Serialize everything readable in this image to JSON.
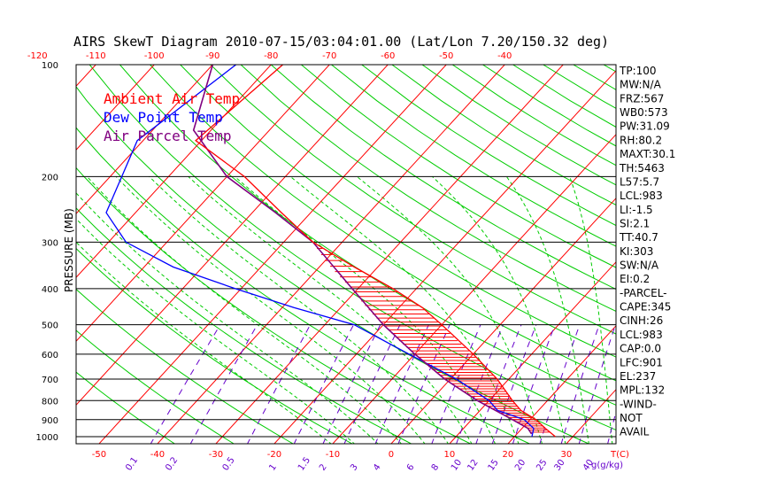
{
  "chart_data": {
    "type": "line",
    "title": "AIRS SkewT Diagram 2010-07-15/03:04:01.00 (Lat/Lon 7.20/150.32 deg)",
    "ylabel": "PRESSURE (MB)",
    "xlabel": "T(C)",
    "mixing_label": "g(g/kg)",
    "pressure_ticks": [
      100,
      200,
      300,
      400,
      500,
      600,
      700,
      800,
      900,
      1000
    ],
    "top_temp_ticks": [
      -120,
      -110,
      -100,
      -90,
      -80,
      -70,
      -60,
      -50,
      -40
    ],
    "bottom_temp_ticks": [
      -50,
      -40,
      -30,
      -20,
      -10,
      0,
      10,
      20,
      30
    ],
    "mixing_ratio_labels": [
      "0.1",
      "0.2",
      "0.5",
      "1",
      "1.5",
      "2",
      "3",
      "4",
      "6",
      "8",
      "10",
      "12",
      "15",
      "20",
      "25",
      "30",
      "40"
    ],
    "mixing_ratio_values": [
      0.1,
      0.2,
      0.5,
      1,
      1.5,
      2,
      3,
      4,
      6,
      8,
      10,
      12,
      15,
      20,
      25,
      30,
      40
    ],
    "legend": [
      {
        "label": "Ambient Air Temp",
        "color": "#ff0000"
      },
      {
        "label": "Dew Point Temp",
        "color": "#0000ff"
      },
      {
        "label": "Air Parcel Temp",
        "color": "#800080"
      }
    ],
    "series": [
      {
        "name": "Ambient Air Temp",
        "points": [
          [
            100,
            -78
          ],
          [
            160,
            -81
          ],
          [
            200,
            -67
          ],
          [
            250,
            -55
          ],
          [
            300,
            -45
          ],
          [
            350,
            -34
          ],
          [
            400,
            -24
          ],
          [
            450,
            -16
          ],
          [
            500,
            -10
          ],
          [
            600,
            0
          ],
          [
            700,
            8
          ],
          [
            800,
            14
          ],
          [
            850,
            17
          ],
          [
            900,
            21
          ],
          [
            950,
            24
          ],
          [
            1000,
            27
          ]
        ]
      },
      {
        "name": "Dew Point Temp",
        "points": [
          [
            100,
            -86
          ],
          [
            160,
            -91
          ],
          [
            200,
            -88
          ],
          [
            250,
            -85
          ],
          [
            300,
            -77
          ],
          [
            350,
            -65
          ],
          [
            400,
            -51
          ],
          [
            450,
            -38
          ],
          [
            500,
            -25
          ],
          [
            600,
            -11
          ],
          [
            700,
            1
          ],
          [
            800,
            10
          ],
          [
            850,
            13
          ],
          [
            900,
            19
          ],
          [
            950,
            22
          ],
          [
            1000,
            23
          ]
        ]
      },
      {
        "name": "Air Parcel Temp",
        "points": [
          [
            100,
            -90
          ],
          [
            150,
            -83
          ],
          [
            200,
            -70
          ],
          [
            250,
            -56
          ],
          [
            300,
            -45
          ],
          [
            400,
            -31
          ],
          [
            500,
            -20
          ],
          [
            600,
            -10
          ],
          [
            700,
            -1
          ],
          [
            800,
            8
          ],
          [
            900,
            17
          ],
          [
            950,
            21
          ],
          [
            983,
            22.5
          ]
        ]
      }
    ],
    "indices": [
      "TP:100",
      "MW:N/A",
      "FRZ:567",
      "WB0:573",
      "PW:31.09",
      "RH:80.2",
      "MAXT:30.1",
      "TH:5463",
      "L57:5.7",
      "LCL:983",
      "LI:-1.5",
      "SI:2.1",
      "TT:40.7",
      "KI:303",
      "SW:N/A",
      "EI:0.2",
      "-PARCEL-",
      "CAPE:345",
      "CINH:26",
      "LCL:983",
      "CAP:0.0",
      "LFC:901",
      "EL:237",
      "MPL:132",
      "-WIND-",
      "NOT",
      "AVAIL"
    ]
  }
}
